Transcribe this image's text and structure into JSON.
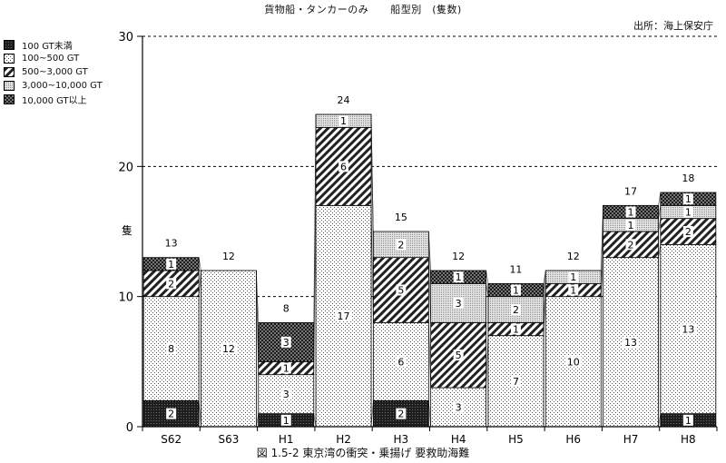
{
  "header": {
    "title_left": "貨物船・タンカーのみ",
    "title_right": "船型別　(隻数)",
    "source": "出所：海上保安庁"
  },
  "caption": "図 1.5-2 東京湾の衝突・乗揚げ 要救助海難",
  "chart_data": {
    "type": "bar",
    "stacked": true,
    "ylabel": "隻",
    "ylim": [
      0,
      30
    ],
    "yticks": [
      0,
      10,
      20,
      30
    ],
    "grid": "dashed horizontal at 10, 20, 30",
    "legend_position": "top-left",
    "categories": [
      "S62",
      "S63",
      "H1",
      "H2",
      "H3",
      "H4",
      "H5",
      "H6",
      "H7",
      "H8"
    ],
    "totals": [
      13,
      12,
      8,
      24,
      15,
      12,
      11,
      12,
      17,
      18
    ],
    "series": [
      {
        "name": "100 GT未満",
        "color": "#2a2a2a",
        "pattern": "dark",
        "values": [
          2,
          0,
          1,
          0,
          2,
          0,
          0,
          0,
          0,
          1
        ]
      },
      {
        "name": "100~500 GT",
        "color": "#e4e4e4",
        "pattern": "dots",
        "values": [
          8,
          12,
          3,
          17,
          6,
          3,
          7,
          10,
          13,
          13
        ]
      },
      {
        "name": "500~3,000 GT",
        "color": "#ffffff",
        "pattern": "diagonal",
        "values": [
          2,
          0,
          1,
          6,
          5,
          5,
          1,
          1,
          2,
          2
        ]
      },
      {
        "name": "3,000~10,000 GT",
        "color": "#cfcfcf",
        "pattern": "fine",
        "values": [
          0,
          0,
          0,
          1,
          2,
          3,
          2,
          1,
          1,
          1
        ]
      },
      {
        "name": "10,000 GT以上",
        "color": "#3a3a3a",
        "pattern": "checker",
        "values": [
          1,
          0,
          3,
          0,
          0,
          1,
          1,
          0,
          1,
          1
        ]
      }
    ]
  }
}
